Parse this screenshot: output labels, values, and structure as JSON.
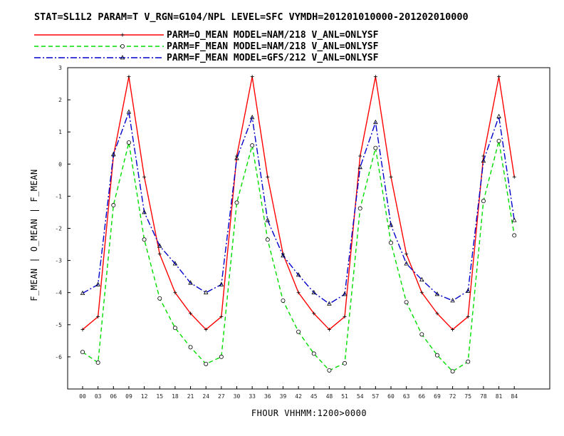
{
  "chart_data": {
    "type": "line",
    "title": "STAT=SL1L2 PARAM=T V_RGN=G104/NPL LEVEL=SFC VYMDH=201201010000-201202010000",
    "xlabel": "FHOUR VHHMM:1200>0000",
    "ylabel": "F_MEAN | O_MEAN | F_MEAN",
    "ylim": [
      -7,
      3
    ],
    "yticks": [
      "3",
      "2",
      "1",
      "0",
      "-1",
      "-2",
      "-3",
      "-4",
      "-5",
      "-6"
    ],
    "categories": [
      "00",
      "03",
      "06",
      "09",
      "12",
      "15",
      "18",
      "21",
      "24",
      "27",
      "30",
      "33",
      "36",
      "39",
      "42",
      "45",
      "48",
      "51",
      "54",
      "57",
      "60",
      "63",
      "66",
      "69",
      "72",
      "75",
      "78",
      "81",
      "84"
    ],
    "grid": false,
    "legend_position": "top",
    "series": [
      {
        "name": "PARM=O_MEAN MODEL=NAM/218 V_ANL=ONLYSF",
        "color": "#ff0000",
        "dash": "solid",
        "marker": "plus",
        "values": [
          -5.15,
          -4.75,
          0.25,
          2.72,
          -0.4,
          -2.8,
          -4.0,
          -4.65,
          -5.15,
          -4.75,
          0.25,
          2.72,
          -0.4,
          -2.8,
          -4.0,
          -4.65,
          -5.15,
          -4.75,
          0.25,
          2.72,
          -0.4,
          -2.8,
          -4.0,
          -4.65,
          -5.15,
          -4.75,
          0.25,
          2.72,
          -0.4
        ]
      },
      {
        "name": "PARM=F_MEAN MODEL=NAM/218 V_ANL=ONLYSF",
        "color": "#00dd00",
        "dash": "dash",
        "marker": "circle",
        "values": [
          -5.85,
          -6.18,
          -1.28,
          0.67,
          -2.35,
          -4.18,
          -5.1,
          -5.7,
          -6.22,
          -6.0,
          -1.2,
          0.58,
          -2.35,
          -4.25,
          -5.22,
          -5.9,
          -6.42,
          -6.2,
          -1.38,
          0.5,
          -2.45,
          -4.3,
          -5.3,
          -5.95,
          -6.45,
          -6.15,
          -1.15,
          0.72,
          -2.22
        ]
      },
      {
        "name": "PARM=F_MEAN MODEL=GFS/212 V_ANL=ONLYSF",
        "color": "#0000cc",
        "dash": "dashdot",
        "marker": "triangle",
        "values": [
          -4.02,
          -3.75,
          0.3,
          1.62,
          -1.5,
          -2.55,
          -3.1,
          -3.7,
          -4.0,
          -3.75,
          0.18,
          1.45,
          -1.75,
          -2.85,
          -3.45,
          -4.0,
          -4.35,
          -4.05,
          -0.1,
          1.3,
          -1.9,
          -3.1,
          -3.6,
          -4.05,
          -4.25,
          -3.95,
          0.1,
          1.48,
          -1.75
        ]
      }
    ]
  }
}
